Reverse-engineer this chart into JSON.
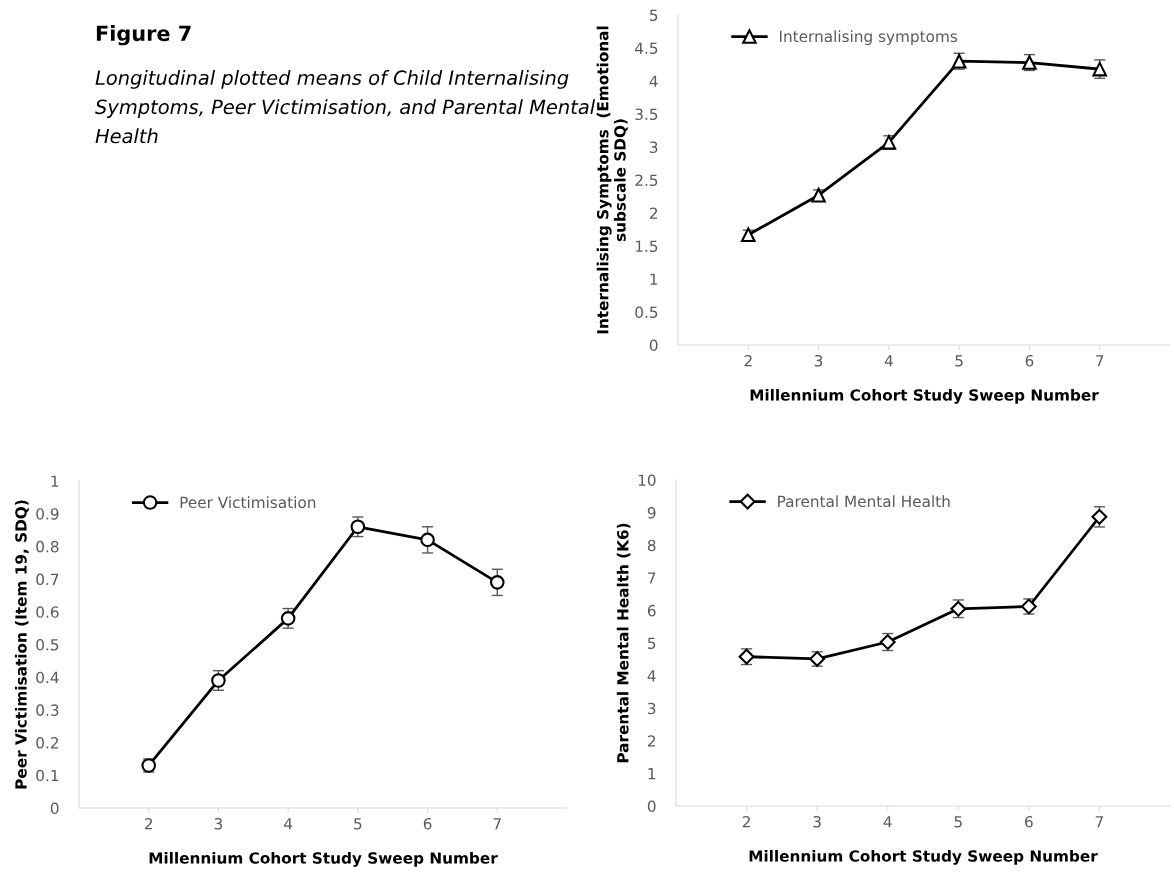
{
  "chart_data": [
    {
      "type": "other",
      "title": "Figure 7",
      "subtitle": "Longitudinal plotted means of Child Internalising Symptoms, Peer Victimisation, and Parental Mental Health"
    },
    {
      "type": "line",
      "xlabel": "Millennium Cohort Study Sweep Number",
      "ylabel": "Internalising Symptoms  (Emotional subscale SDQ)",
      "x": [
        2,
        3,
        4,
        5,
        6,
        7
      ],
      "xlim": [
        1,
        8
      ],
      "xticks": [
        2,
        3,
        4,
        5,
        6,
        7
      ],
      "ylim": [
        0,
        5
      ],
      "yticks": [
        0,
        0.5,
        1,
        1.5,
        2,
        2.5,
        3,
        3.5,
        4,
        4.5,
        5
      ],
      "marker": "triangle",
      "legend": "top left",
      "grid": false,
      "series": [
        {
          "name": "Internalising symptoms",
          "color": "#000000",
          "values": [
            1.67,
            2.27,
            3.07,
            4.3,
            4.28,
            4.18
          ],
          "errors": [
            0.07,
            0.08,
            0.1,
            0.12,
            0.12,
            0.14
          ]
        }
      ]
    },
    {
      "type": "line",
      "xlabel": "Millennium Cohort Study Sweep Number",
      "ylabel": "Peer Victimisation (Item 19, SDQ)",
      "x": [
        2,
        3,
        4,
        5,
        6,
        7
      ],
      "xlim": [
        1,
        8
      ],
      "xticks": [
        2,
        3,
        4,
        5,
        6,
        7
      ],
      "ylim": [
        0,
        1
      ],
      "yticks": [
        0,
        0.1,
        0.2,
        0.3,
        0.4,
        0.5,
        0.6,
        0.7,
        0.8,
        0.9,
        1
      ],
      "marker": "circle",
      "legend": "top left",
      "grid": false,
      "series": [
        {
          "name": "Peer Victimisation",
          "color": "#000000",
          "values": [
            0.13,
            0.39,
            0.58,
            0.86,
            0.82,
            0.69
          ],
          "errors": [
            0.02,
            0.03,
            0.03,
            0.03,
            0.04,
            0.04
          ]
        }
      ]
    },
    {
      "type": "line",
      "xlabel": "Millennium Cohort Study Sweep Number",
      "ylabel": "Parental Mental Health (K6)",
      "x": [
        2,
        3,
        4,
        5,
        6,
        7
      ],
      "xlim": [
        1,
        8
      ],
      "xticks": [
        2,
        3,
        4,
        5,
        6,
        7
      ],
      "ylim": [
        0,
        10
      ],
      "yticks": [
        0,
        1,
        2,
        3,
        4,
        5,
        6,
        7,
        8,
        9,
        10
      ],
      "marker": "diamond",
      "legend": "top left",
      "grid": false,
      "series": [
        {
          "name": "Parental Mental Health",
          "color": "#000000",
          "values": [
            4.58,
            4.51,
            5.03,
            6.05,
            6.12,
            8.87
          ],
          "errors": [
            0.24,
            0.22,
            0.26,
            0.27,
            0.23,
            0.31
          ]
        }
      ]
    }
  ]
}
